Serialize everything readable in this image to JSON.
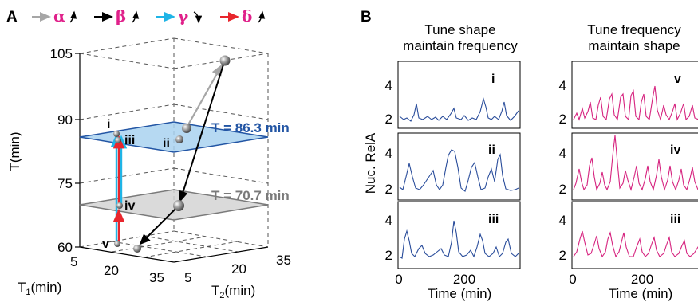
{
  "panel_a": {
    "label": "A",
    "legend": [
      {
        "symbol": "α",
        "arrow_color": "#a6a6a6",
        "symbol_color": "#e0208a",
        "curve": "up"
      },
      {
        "symbol": "β",
        "arrow_color": "#000000",
        "symbol_color": "#e0208a",
        "curve": "up"
      },
      {
        "symbol": "γ",
        "arrow_color": "#1fb4e6",
        "symbol_color": "#e0208a",
        "curve": "down"
      },
      {
        "symbol": "δ",
        "arrow_color": "#e8262d",
        "symbol_color": "#e0208a",
        "curve": "up"
      }
    ],
    "z_axis": {
      "label": "T(min)",
      "ticks": [
        "105",
        "90",
        "75",
        "60"
      ]
    },
    "x_axis": {
      "label_main": "T",
      "label_sub": "1",
      "label_unit": "(min)",
      "ticks": [
        "5",
        "20",
        "35"
      ]
    },
    "y_axis": {
      "label_main": "T",
      "label_sub": "2",
      "label_unit": "(min)",
      "ticks": [
        "5",
        "20",
        "35"
      ]
    },
    "planes": [
      {
        "label": "T = 86.3 min",
        "color": "#2255a4",
        "fill": "#a9d2f0"
      },
      {
        "label": "T = 70.7 min",
        "color": "#7a7a7a",
        "fill": "#d4d4d4"
      }
    ],
    "point_labels": [
      "i",
      "iii",
      "ii",
      "iv",
      "v"
    ]
  },
  "panel_b": {
    "label": "B",
    "ylabel": "Nuc. RelA",
    "xlabel": "Time (min)",
    "columns": [
      {
        "title_line1": "Tune shape",
        "title_line2": "maintain frequency",
        "color": "#2a4d9b",
        "panels": [
          "i",
          "ii",
          "iii"
        ],
        "x_ticks": [
          "0",
          "200"
        ]
      },
      {
        "title_line1": "Tune frequency",
        "title_line2": "maintain shape",
        "color": "#d6237f",
        "panels": [
          "v",
          "iv",
          "iii"
        ],
        "x_ticks": [
          "0",
          "200"
        ]
      }
    ],
    "y_ticks": [
      "4",
      "2"
    ]
  }
}
